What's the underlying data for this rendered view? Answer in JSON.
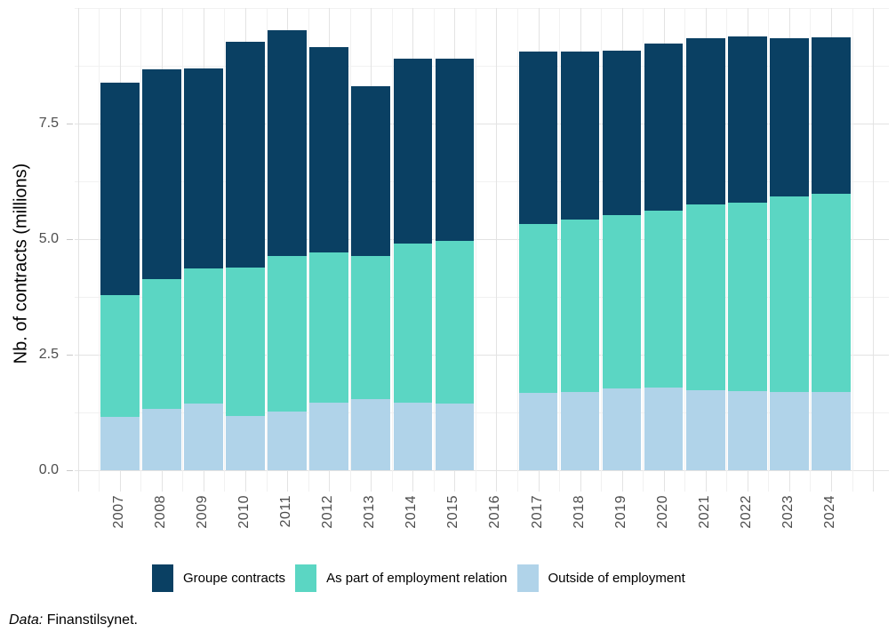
{
  "chart_data": {
    "type": "bar",
    "stacked": true,
    "title": "",
    "xlabel": "",
    "ylabel": "Nb. of contracts (millions)",
    "ylim": [
      0,
      10
    ],
    "yticks": [
      0.0,
      2.5,
      5.0,
      7.5
    ],
    "ytick_labels": [
      "0.0",
      "2.5",
      "5.0",
      "7.5"
    ],
    "yminor": [
      1.25,
      3.75,
      6.25,
      8.75
    ],
    "grid": true,
    "legend_position": "bottom",
    "categories": [
      "2007",
      "2008",
      "2009",
      "2010",
      "2011",
      "2012",
      "2013",
      "2014",
      "2015",
      "2016",
      "2017",
      "2018",
      "2019",
      "2020",
      "2021",
      "2022",
      "2023",
      "2024"
    ],
    "missing_categories": [
      "2016"
    ],
    "series": [
      {
        "name": "Groupe contracts",
        "color": "#0a4063",
        "values": [
          4.6,
          4.54,
          4.33,
          4.88,
          4.88,
          4.44,
          3.68,
          4.0,
          3.93,
          null,
          3.72,
          3.63,
          3.56,
          3.61,
          3.59,
          3.59,
          3.42,
          3.38
        ]
      },
      {
        "name": "As part of employment relation",
        "color": "#5bd6c3",
        "values": [
          2.64,
          2.8,
          2.93,
          3.21,
          3.37,
          3.26,
          3.1,
          3.43,
          3.53,
          null,
          3.66,
          3.72,
          3.76,
          3.84,
          4.02,
          4.07,
          4.22,
          4.29
        ]
      },
      {
        "name": "Outside of employment",
        "color": "#b0d3e9",
        "values": [
          1.15,
          1.33,
          1.44,
          1.17,
          1.26,
          1.46,
          1.53,
          1.47,
          1.44,
          null,
          1.67,
          1.7,
          1.76,
          1.78,
          1.73,
          1.72,
          1.7,
          1.7
        ]
      }
    ],
    "totals": [
      8.39,
      8.67,
      8.7,
      9.26,
      9.51,
      9.16,
      8.31,
      8.9,
      8.9,
      null,
      9.05,
      9.05,
      9.08,
      9.23,
      9.34,
      9.38,
      9.34,
      9.37
    ]
  },
  "caption": {
    "prefix": "Data:",
    "text": " Finanstilsynet."
  },
  "colors": {
    "background": "#ffffff",
    "grid_major": "#e3e3e3",
    "grid_minor": "#f1f1f1",
    "axis_text": "#4d4d4d"
  }
}
